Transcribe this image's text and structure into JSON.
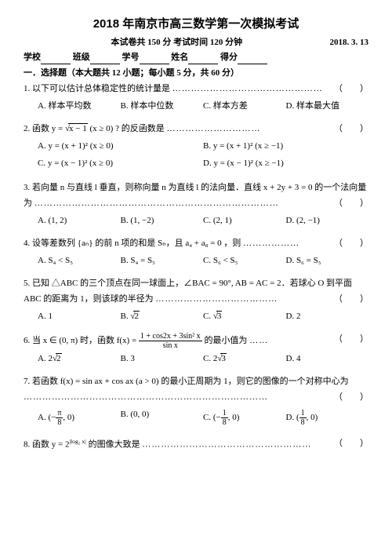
{
  "title": "2018 年南京市高三数学第一次模拟考试",
  "subtitle_text": "本试卷共 150 分  考试时间 120 分钟",
  "date_text": "2018. 3. 13",
  "info_labels": {
    "school": "学校",
    "class": "班级",
    "sid": "学号",
    "name": "姓名",
    "score": "得分"
  },
  "section_head": "一．选择题（本大题共 12 小题；每小题 5 分，共 60 分）",
  "questions": [
    {
      "num": "1.",
      "text": "以下可以估计总体稳定性的统计量是",
      "opts_layout": "fourcol",
      "opts": [
        "A.  样本平均数",
        "B.  样本中位数",
        "C.  样本方差",
        "D.  样本最大值"
      ]
    },
    {
      "num": "2.",
      "pre": "函数 y = ",
      "mid": "x − 1",
      "post": " (x ≥ 0) ? 的反函数是",
      "opts_layout": "twocol",
      "opts": [
        "A.  y = (x + 1)²  (x ≥ 0)",
        "B.  y = (x + 1)²  (x ≥ −1)",
        "C.  y = (x − 1)²  (x ≥ 0)",
        "D.  y = (x − 1)²  (x ≥ −1)"
      ]
    },
    {
      "num": "3.",
      "text": "若向量 n 与直线 l 垂直，则称向量 n 为直线 l 的法向量．直线 x + 2y + 3 = 0 的一个法向量为 ",
      "opts_layout": "fourcol",
      "opts": [
        "A.  (1,  2)",
        "B.  (1, −2)",
        "C.  (2,  1)",
        "D.  (2, −1)"
      ]
    },
    {
      "num": "4.",
      "text": "设等差数列 {aₙ} 的前 n 项的和是 Sₙ，且 a₄ + a₈ = 0 ，则",
      "opts_layout": "fourcol",
      "opts": [
        "A.  S₄ < S₅",
        "B.  S₄ = S₅",
        "C.  S₆ < S₅",
        "D.  S₆ = S₅"
      ]
    },
    {
      "num": "5.",
      "text": "已知 △ABC 的三个顶点在同一球面上，∠BAC = 90°, AB = AC = 2．若球心 O 到平面 ABC 的距离为 1，则该球的半径为 ",
      "opts_layout": "fourcol",
      "opts": [
        "A.  1",
        "B.  √2",
        "C.  √3",
        "D.  2"
      ]
    },
    {
      "num": "6.",
      "pre": "当 x ∈ (0,  π) 时，函数 f(x) = ",
      "frac_num": "1 + cos2x + 3sin² x",
      "frac_den": "sin x",
      "post": " 的最小值为",
      "opts_layout": "fourcol",
      "opts": [
        "A.  2√2",
        "B.  3",
        "C.  2√3",
        "D.  4"
      ]
    },
    {
      "num": "7.",
      "text": "若函数 f(x) = sin ax + cos ax (a > 0) 的最小正周期为 1，则它的图像的一个对称中心为 ",
      "opts_layout": "fourcol",
      "opts": [
        {
          "pre": "A.  (−",
          "f_num": "π",
          "f_den": "8",
          "post": ", 0)"
        },
        "B.  (0, 0)",
        {
          "pre": "C.  (−",
          "f_num": "1",
          "f_den": "8",
          "post": ", 0)"
        },
        {
          "pre": "D.  (",
          "f_num": "1",
          "f_den": "8",
          "post": ", 0)"
        }
      ]
    },
    {
      "num": "8.",
      "pre": "函数 y = 2",
      "sup": "|log₂ x|",
      "post": " 的图像大致是"
    }
  ]
}
